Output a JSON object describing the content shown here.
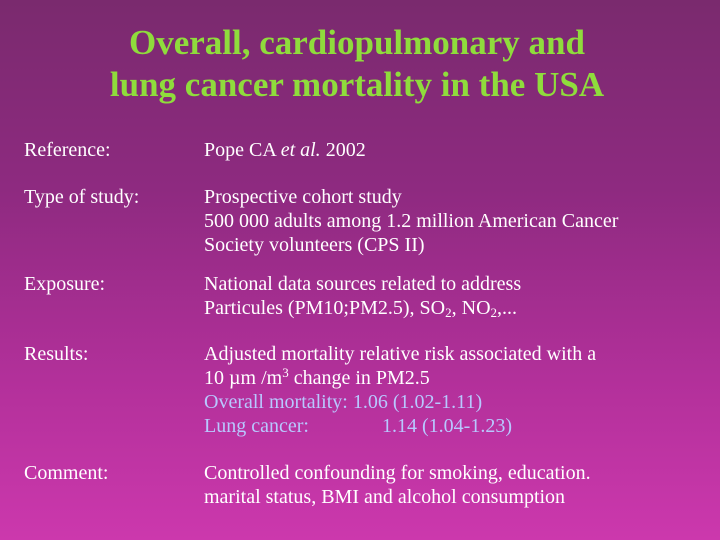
{
  "title": {
    "line1": "Overall, cardiopulmonary and",
    "line2": "lung cancer mortality in the USA"
  },
  "reference": {
    "label": "Reference:",
    "authors": "Pope CA ",
    "etal": "et al.",
    "year": " 2002"
  },
  "study": {
    "label": "Type of study:",
    "line1": "Prospective cohort study",
    "line2": "500 000 adults among 1.2 million American Cancer",
    "line3": "Society volunteers (CPS II)"
  },
  "exposure": {
    "label": "Exposure:",
    "line1": "National data sources related to address",
    "line2_prefix": "Particules (PM10;PM2.5), SO",
    "so2_sub": "2",
    "line2_mid": ", NO",
    "no2_sub": "2",
    "line2_suffix": ",..."
  },
  "results": {
    "label": "Results:",
    "line1": "Adjusted mortality relative risk associated with a",
    "line2_prefix": "10 µm /m",
    "m3_sup": "3",
    "line2_suffix": " change in PM2.5",
    "overall_label": "Overall mortality:",
    "overall_value": " 1.06 (1.02-1.11)",
    "lung_label": "Lung cancer:",
    "lung_value": "1.14 (1.04-1.23)"
  },
  "comment": {
    "label": "Comment:",
    "line1": "Controlled confounding for smoking, education.",
    "line2": "marital status, BMI and alcohol consumption"
  },
  "colors": {
    "title": "#8fdc3c",
    "highlight": "#b8c8ff",
    "background_top": "#7a2a6e",
    "background_bottom": "#cc38ad"
  }
}
